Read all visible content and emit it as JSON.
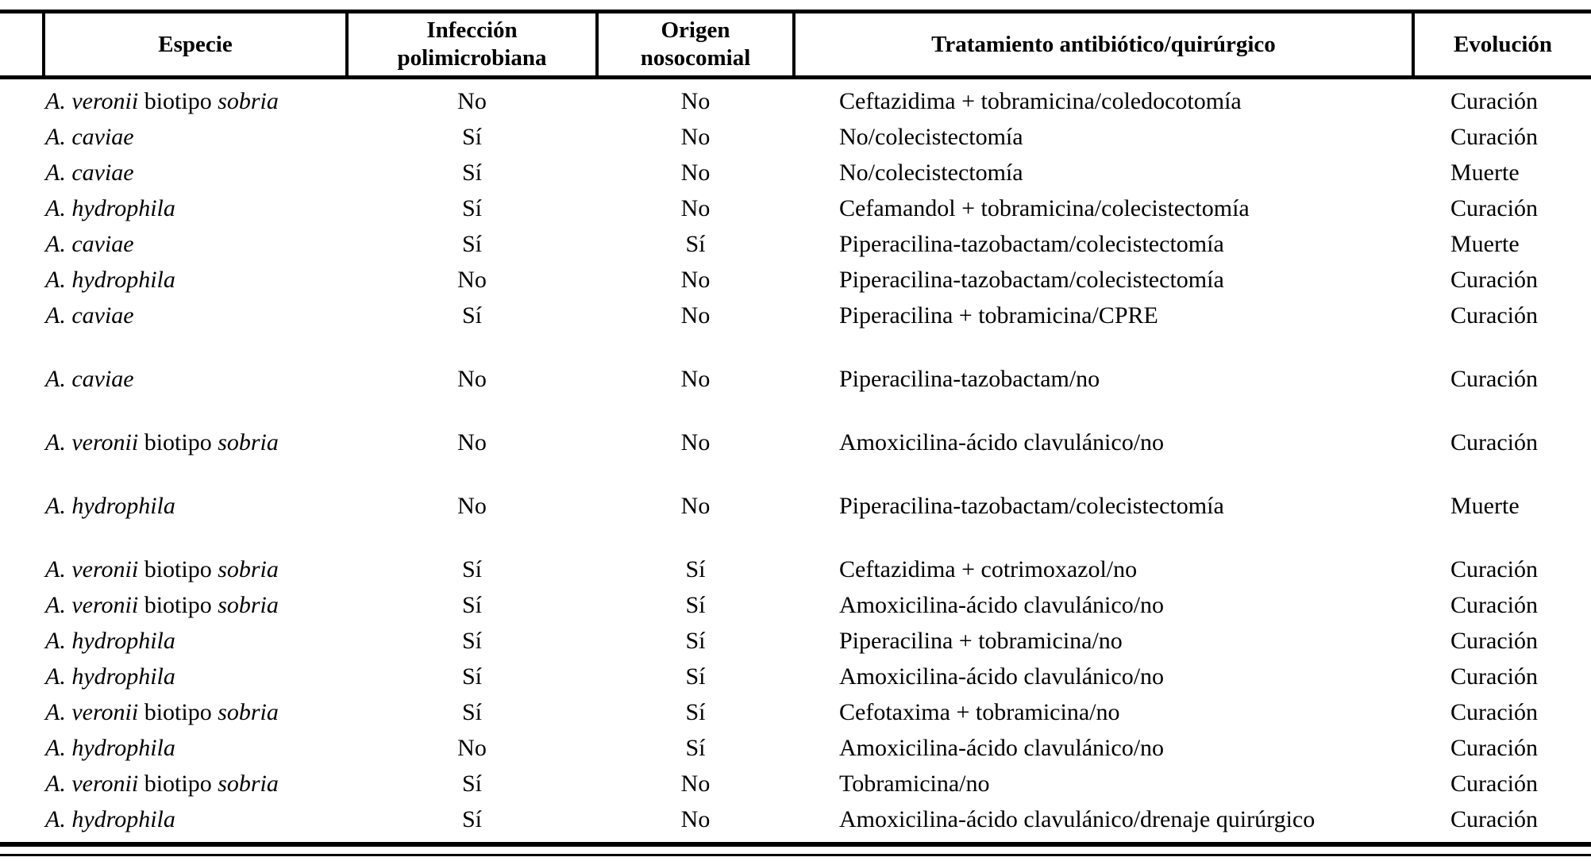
{
  "colors": {
    "text": "#000000",
    "background": "#ffffff",
    "rule": "#000000"
  },
  "table": {
    "headers": {
      "rownum": "",
      "especie": "Especie",
      "infeccion": [
        "Infección",
        "polimicrobiana"
      ],
      "origen": [
        "Origen",
        "nosocomial"
      ],
      "tratamiento": "Tratamiento antibiótico/quirúrgico",
      "evolucion": "Evolución"
    },
    "rows": [
      {
        "especie": [
          {
            "text": "A. veronii",
            "italic": true
          },
          {
            "text": "biotipo",
            "italic": false
          },
          {
            "text": "sobria",
            "italic": true
          }
        ],
        "infeccion": "No",
        "origen": "No",
        "tratamiento": "Ceftazidima + tobramicina/coledocotomía",
        "evolucion": "Curación"
      },
      {
        "especie": [
          {
            "text": "A. caviae",
            "italic": true
          }
        ],
        "infeccion": "Sí",
        "origen": "No",
        "tratamiento": "No/colecistectomía",
        "evolucion": "Curación"
      },
      {
        "especie": [
          {
            "text": "A. caviae",
            "italic": true
          }
        ],
        "infeccion": "Sí",
        "origen": "No",
        "tratamiento": "No/colecistectomía",
        "evolucion": "Muerte"
      },
      {
        "especie": [
          {
            "text": "A. hydrophila",
            "italic": true
          }
        ],
        "infeccion": "Sí",
        "origen": "No",
        "tratamiento": "Cefamandol + tobramicina/colecistectomía",
        "evolucion": "Curación"
      },
      {
        "especie": [
          {
            "text": "A. caviae",
            "italic": true
          }
        ],
        "infeccion": "Sí",
        "origen": "Sí",
        "tratamiento": "Piperacilina-tazobactam/colecistectomía",
        "evolucion": "Muerte"
      },
      {
        "especie": [
          {
            "text": "A. hydrophila",
            "italic": true
          }
        ],
        "infeccion": "No",
        "origen": "No",
        "tratamiento": "Piperacilina-tazobactam/colecistectomía",
        "evolucion": "Curación"
      },
      {
        "especie": [
          {
            "text": "A. caviae",
            "italic": true
          }
        ],
        "infeccion": "Sí",
        "origen": "No",
        "tratamiento": "Piperacilina + tobramicina/CPRE",
        "evolucion": "Curación"
      },
      {
        "gap_before": true,
        "especie": [
          {
            "text": "A. caviae",
            "italic": true
          }
        ],
        "infeccion": "No",
        "origen": "No",
        "tratamiento": "Piperacilina-tazobactam/no",
        "evolucion": "Curación"
      },
      {
        "gap_before": true,
        "especie": [
          {
            "text": "A. veronii",
            "italic": true
          },
          {
            "text": "biotipo",
            "italic": false
          },
          {
            "text": "sobria",
            "italic": true
          }
        ],
        "infeccion": "No",
        "origen": "No",
        "tratamiento": "Amoxicilina-ácido clavulánico/no",
        "evolucion": "Curación"
      },
      {
        "gap_before": true,
        "especie": [
          {
            "text": "A. hydrophila",
            "italic": true
          }
        ],
        "infeccion": "No",
        "origen": "No",
        "tratamiento": "Piperacilina-tazobactam/colecistectomía",
        "evolucion": "Muerte"
      },
      {
        "gap_before": true,
        "especie": [
          {
            "text": "A. veronii",
            "italic": true
          },
          {
            "text": "biotipo",
            "italic": false
          },
          {
            "text": "sobria",
            "italic": true
          }
        ],
        "infeccion": "Sí",
        "origen": "Sí",
        "tratamiento": "Ceftazidima + cotrimoxazol/no",
        "evolucion": "Curación"
      },
      {
        "especie": [
          {
            "text": "A. veronii",
            "italic": true
          },
          {
            "text": "biotipo",
            "italic": false
          },
          {
            "text": "sobria",
            "italic": true
          }
        ],
        "infeccion": "Sí",
        "origen": "Sí",
        "tratamiento": "Amoxicilina-ácido clavulánico/no",
        "evolucion": "Curación"
      },
      {
        "especie": [
          {
            "text": "A. hydrophila",
            "italic": true
          }
        ],
        "infeccion": "Sí",
        "origen": "Sí",
        "tratamiento": "Piperacilina + tobramicina/no",
        "evolucion": "Curación"
      },
      {
        "especie": [
          {
            "text": "A. hydrophila",
            "italic": true
          }
        ],
        "infeccion": "Sí",
        "origen": "Sí",
        "tratamiento": "Amoxicilina-ácido clavulánico/no",
        "evolucion": "Curación"
      },
      {
        "especie": [
          {
            "text": "A. veronii",
            "italic": true
          },
          {
            "text": "biotipo",
            "italic": false
          },
          {
            "text": "sobria",
            "italic": true
          }
        ],
        "infeccion": "Sí",
        "origen": "Sí",
        "tratamiento": "Cefotaxima + tobramicina/no",
        "evolucion": "Curación"
      },
      {
        "especie": [
          {
            "text": "A. hydrophila",
            "italic": true
          }
        ],
        "infeccion": "No",
        "origen": "Sí",
        "tratamiento": "Amoxicilina-ácido clavulánico/no",
        "evolucion": "Curación"
      },
      {
        "especie": [
          {
            "text": "A. veronii",
            "italic": true
          },
          {
            "text": "biotipo",
            "italic": false
          },
          {
            "text": "sobria",
            "italic": true
          }
        ],
        "infeccion": "Sí",
        "origen": "No",
        "tratamiento": "Tobramicina/no",
        "evolucion": "Curación"
      },
      {
        "especie": [
          {
            "text": "A. hydrophila",
            "italic": true
          }
        ],
        "infeccion": "Sí",
        "origen": "No",
        "tratamiento": "Amoxicilina-ácido clavulánico/drenaje quirúrgico",
        "evolucion": "Curación"
      }
    ]
  }
}
